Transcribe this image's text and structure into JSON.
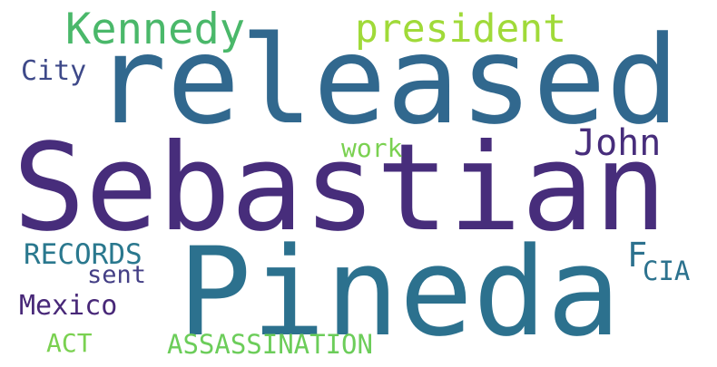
{
  "colors": {
    "purple": "#46246a",
    "teal": "#2e6e8e",
    "blue_teal": "#31688e",
    "mid_teal": "#2a788e",
    "green": "#4fb96a",
    "light_green": "#7ad151",
    "yellow_green": "#a5db36",
    "dark_purple": "#482878",
    "navy_purple": "#3e4a89"
  },
  "words": {
    "sebastian": "Sebastian",
    "pineda": "Pineda",
    "released": "released",
    "kennedy": "Kennedy",
    "president": "president",
    "john": "John",
    "city": "City",
    "work": "work",
    "records": "RECORDS",
    "sent": "sent",
    "f": "F",
    "cia": "CIA",
    "mexico": "Mexico",
    "act": "ACT",
    "assassination": "ASSASSINATION"
  }
}
